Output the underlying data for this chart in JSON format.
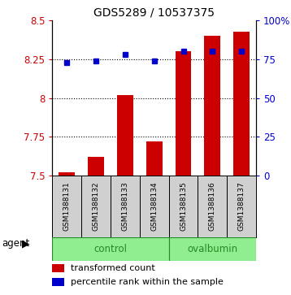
{
  "title": "GDS5289 / 10537375",
  "samples": [
    "GSM1388131",
    "GSM1388132",
    "GSM1388133",
    "GSM1388134",
    "GSM1388135",
    "GSM1388136",
    "GSM1388137"
  ],
  "bar_values": [
    7.52,
    7.62,
    8.02,
    7.72,
    8.3,
    8.4,
    8.43
  ],
  "percentile_values": [
    73,
    74,
    78,
    74,
    80,
    80,
    80
  ],
  "bar_color": "#cc0000",
  "dot_color": "#0000cc",
  "ylim_left": [
    7.5,
    8.5
  ],
  "ylim_right": [
    0,
    100
  ],
  "yticks_left": [
    7.5,
    7.75,
    8.0,
    8.25,
    8.5
  ],
  "ytick_labels_left": [
    "7.5",
    "7.75",
    "8",
    "8.25",
    "8.5"
  ],
  "yticks_right": [
    0,
    25,
    50,
    75,
    100
  ],
  "ytick_labels_right": [
    "0",
    "25",
    "50",
    "75",
    "100%"
  ],
  "grid_values": [
    7.75,
    8.0,
    8.25
  ],
  "control_count": 4,
  "group_color": "#90EE90",
  "group_border_color": "#228B22",
  "sample_bg_color": "#d0d0d0",
  "legend_bar_label": "transformed count",
  "legend_dot_label": "percentile rank within the sample",
  "bar_bottom": 7.5,
  "bar_width": 0.55
}
